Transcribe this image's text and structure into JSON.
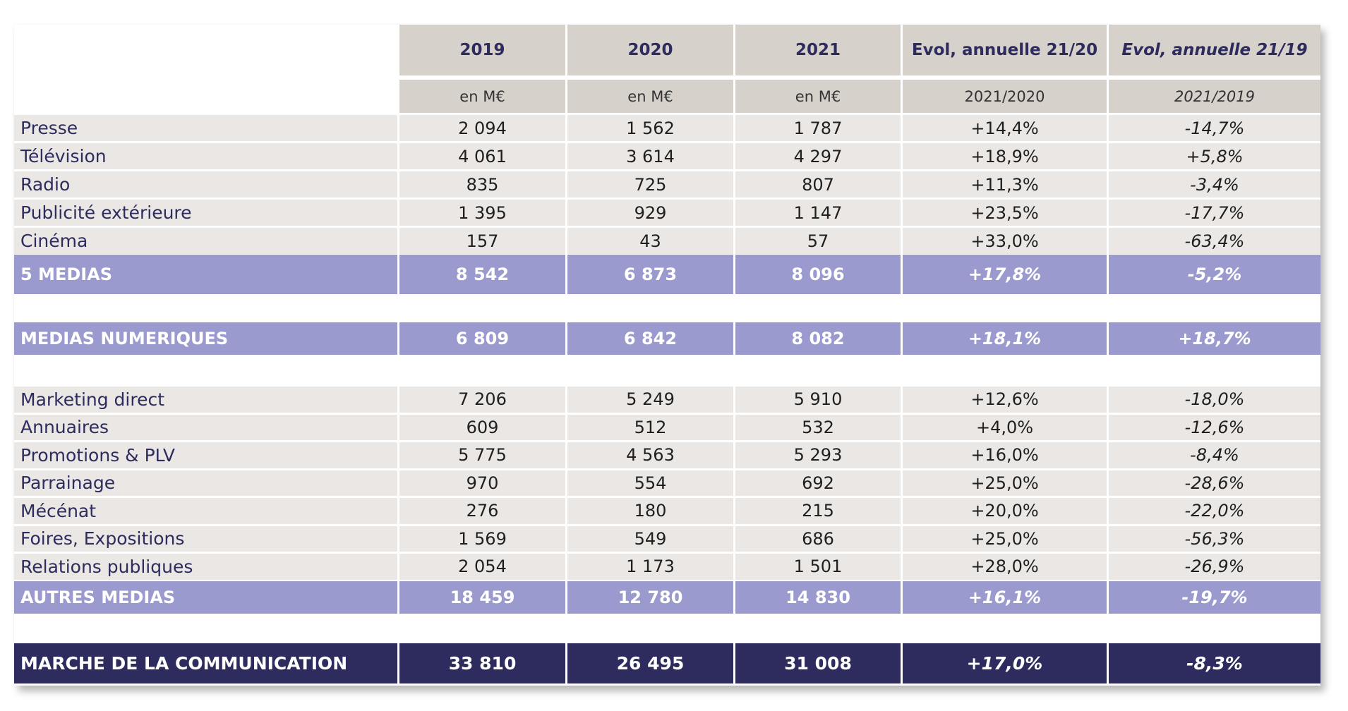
{
  "colors": {
    "header_bg": "#d7d1cc",
    "header_text": "#2e2c5e",
    "row_bg": "#eae7e4",
    "label_text": "#2e2c5e",
    "subtotal_bg": "#9b9ace",
    "total_bg": "#2e2c5e",
    "total_text": "#ffffff"
  },
  "header": {
    "columns": [
      "2019",
      "2020",
      "2021",
      "Evol, annuelle 21/20",
      "Evol, annuelle 21/19"
    ],
    "units": [
      "en M€",
      "en M€",
      "en M€",
      "2021/2020",
      "2021/2019"
    ]
  },
  "groups": {
    "five_medias": {
      "rows": [
        {
          "label": "Presse",
          "values": [
            "2 094",
            "1 562",
            "1 787",
            "+14,4%",
            "-14,7%"
          ]
        },
        {
          "label": "Télévision",
          "values": [
            "4 061",
            "3 614",
            "4 297",
            "+18,9%",
            "+5,8%"
          ]
        },
        {
          "label": "Radio",
          "values": [
            "835",
            "725",
            "807",
            "+11,3%",
            "-3,4%"
          ]
        },
        {
          "label": "Publicité extérieure",
          "values": [
            "1 395",
            "929",
            "1 147",
            "+23,5%",
            "-17,7%"
          ]
        },
        {
          "label": "Cinéma",
          "values": [
            "157",
            "43",
            "57",
            "+33,0%",
            "-63,4%"
          ]
        }
      ],
      "subtotal": {
        "label": "5 MEDIAS",
        "values": [
          "8 542",
          "6 873",
          "8 096",
          "+17,8%",
          "-5,2%"
        ]
      }
    },
    "medias_numeriques": {
      "subtotal": {
        "label": "MEDIAS NUMERIQUES",
        "values": [
          "6 809",
          "6 842",
          "8 082",
          "+18,1%",
          "+18,7%"
        ]
      }
    },
    "autres_medias": {
      "rows": [
        {
          "label": "Marketing direct",
          "values": [
            "7 206",
            "5 249",
            "5 910",
            "+12,6%",
            "-18,0%"
          ]
        },
        {
          "label": "Annuaires",
          "values": [
            "609",
            "512",
            "532",
            "+4,0%",
            "-12,6%"
          ]
        },
        {
          "label": "Promotions & PLV",
          "values": [
            "5 775",
            "4 563",
            "5 293",
            "+16,0%",
            "-8,4%"
          ]
        },
        {
          "label": "Parrainage",
          "values": [
            "970",
            "554",
            "692",
            "+25,0%",
            "-28,6%"
          ]
        },
        {
          "label": "Mécénat",
          "values": [
            "276",
            "180",
            "215",
            "+20,0%",
            "-22,0%"
          ]
        },
        {
          "label": "Foires, Expositions",
          "values": [
            "1 569",
            "549",
            "686",
            "+25,0%",
            "-56,3%"
          ]
        },
        {
          "label": "Relations publiques",
          "values": [
            "2 054",
            "1 173",
            "1 501",
            "+28,0%",
            "-26,9%"
          ]
        }
      ],
      "subtotal": {
        "label": "AUTRES MEDIAS",
        "values": [
          "18 459",
          "12 780",
          "14 830",
          "+16,1%",
          "-19,7%"
        ]
      }
    }
  },
  "total": {
    "label": "MARCHE DE LA COMMUNICATION",
    "values": [
      "33 810",
      "26 495",
      "31 008",
      "+17,0%",
      "-8,3%"
    ]
  }
}
